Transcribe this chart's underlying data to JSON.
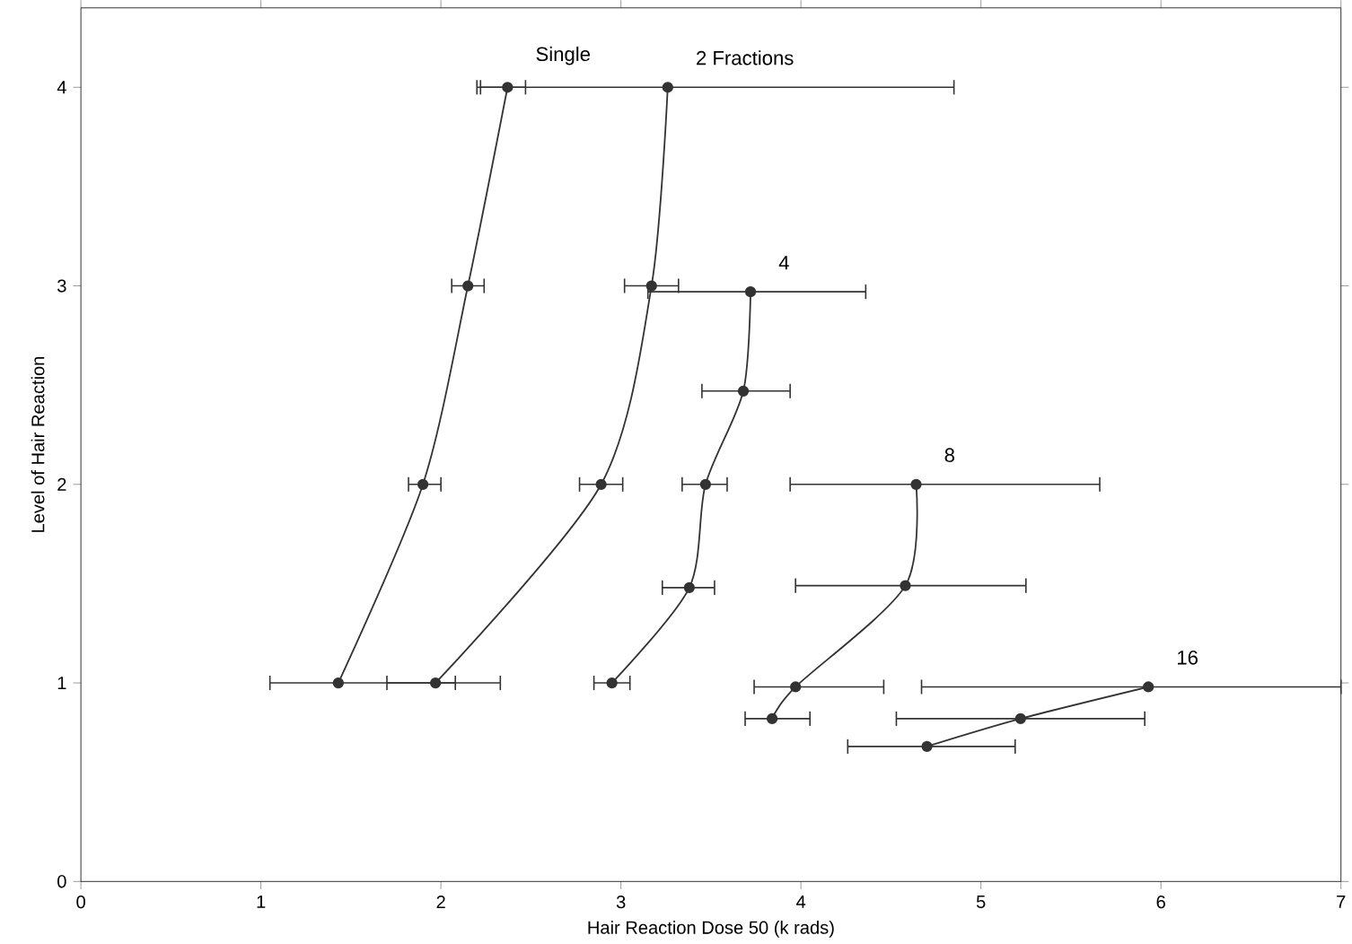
{
  "chart_data": {
    "type": "line",
    "xlabel": "Hair Reaction Dose 50 (k rads)",
    "ylabel": "Level of Hair Reaction",
    "xlim": [
      0,
      7
    ],
    "ylim": [
      0,
      4.4
    ],
    "xticks": [
      0,
      1,
      2,
      3,
      4,
      5,
      6,
      7
    ],
    "yticks": [
      0,
      1,
      2,
      3,
      4
    ],
    "marker": "circle",
    "line_style": "solid",
    "series": [
      {
        "name": "Single",
        "color": "#333333",
        "x": [
          1.43,
          1.9,
          2.15,
          2.37
        ],
        "values": [
          1.0,
          2.0,
          3.0,
          4.0
        ],
        "xerrors": [
          [
            1.05,
            2.08
          ],
          [
            1.82,
            2.0
          ],
          [
            2.06,
            2.24
          ],
          [
            2.2,
            2.47
          ]
        ]
      },
      {
        "name": "2 Fractions",
        "color": "#333333",
        "x": [
          1.97,
          2.89,
          3.17,
          3.26
        ],
        "values": [
          1.0,
          2.0,
          3.0,
          4.0
        ],
        "xerrors": [
          [
            1.7,
            2.33
          ],
          [
            2.77,
            3.01
          ],
          [
            3.02,
            3.32
          ],
          [
            2.22,
            4.85
          ]
        ]
      },
      {
        "name": "4",
        "color": "#333333",
        "x": [
          2.95,
          3.38,
          3.47,
          3.68,
          3.72
        ],
        "values": [
          1.0,
          1.48,
          2.0,
          2.47,
          2.97
        ],
        "xerrors": [
          [
            2.85,
            3.05
          ],
          [
            3.23,
            3.52
          ],
          [
            3.34,
            3.59
          ],
          [
            3.45,
            3.94
          ],
          [
            3.15,
            4.36
          ]
        ]
      },
      {
        "name": "8",
        "color": "#333333",
        "x": [
          3.84,
          3.97,
          4.58,
          4.64
        ],
        "values": [
          0.82,
          0.98,
          1.49,
          2.0
        ],
        "xerrors": [
          [
            3.69,
            4.05
          ],
          [
            3.74,
            4.46
          ],
          [
            3.97,
            5.25
          ],
          [
            3.94,
            5.66
          ]
        ]
      },
      {
        "name": "16",
        "color": "#333333",
        "x": [
          4.7,
          5.22,
          5.93
        ],
        "values": [
          0.68,
          0.82,
          0.98
        ],
        "xerrors": [
          [
            4.26,
            5.19
          ],
          [
            4.53,
            5.91
          ],
          [
            4.67,
            7.0
          ]
        ]
      }
    ]
  }
}
